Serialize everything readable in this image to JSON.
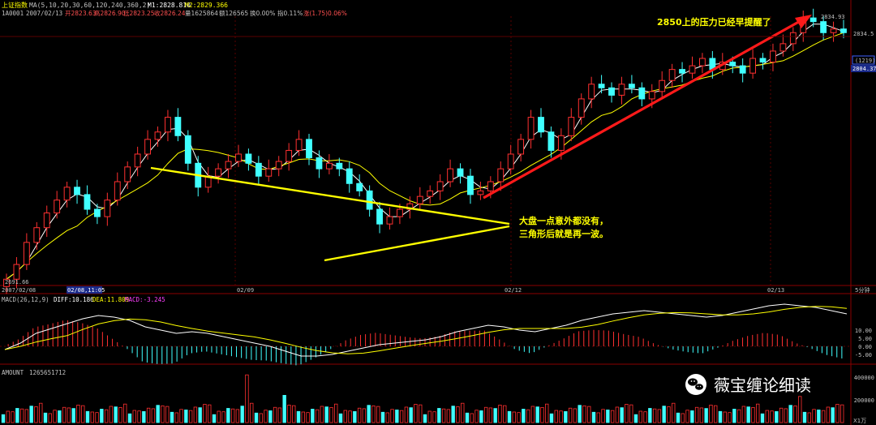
{
  "header": {
    "title": "上证指数",
    "ma_params": "MA(5,10,20,30,60,120,240,360,2)",
    "m1": "M1:2828.810",
    "m2": "M2:2829.366",
    "code": "1A0001",
    "date": "2007/02/13",
    "open": "开2823.63",
    "high": "高2826.90",
    "low": "低2823.25",
    "close": "收2826.24",
    "volume": "量1625864",
    "amount": "额126565",
    "turnover": "换0.00%",
    "index_pct": "指0.11%",
    "change": "涨(1.75)0.06%"
  },
  "annotations": {
    "top": "2850上的压力已经早提醒了",
    "mid_line1": "大盘一点意外都没有，",
    "mid_line2": "三角形后就是再一波。"
  },
  "price_labels": {
    "low_marker": "2691.66",
    "high_marker": "2834.93",
    "axis_top": "2834.5",
    "axis_box": "(1219)",
    "axis_cur": "2804.37"
  },
  "x_axis": {
    "labels": [
      "2007/02/08",
      "02/08,11:05",
      "02/09",
      "02/12",
      "02/13"
    ],
    "period": "5分钟"
  },
  "macd_header": {
    "name": "MACD(26,12,9)",
    "diff": "DIFF:10.186",
    "dea": "DEA:11.809",
    "macd": "MACD:-3.245"
  },
  "amount_header": {
    "name": "AMOUNT",
    "value": "1265651712"
  },
  "watermark": "薇宝缠论细读",
  "chart_data": {
    "type": "candlestick",
    "title": "上证指数",
    "interval": "5分钟",
    "price_range": [
      2691.66,
      2834.93
    ],
    "close_approx": [
      2692,
      2700,
      2712,
      2720,
      2728,
      2735,
      2742,
      2738,
      2730,
      2726,
      2735,
      2745,
      2753,
      2760,
      2768,
      2772,
      2780,
      2770,
      2755,
      2742,
      2748,
      2752,
      2756,
      2760,
      2755,
      2748,
      2752,
      2756,
      2762,
      2768,
      2758,
      2752,
      2755,
      2752,
      2744,
      2740,
      2730,
      2722,
      2726,
      2730,
      2733,
      2737,
      2740,
      2745,
      2752,
      2748,
      2738,
      2740,
      2745,
      2752,
      2760,
      2768,
      2780,
      2772,
      2762,
      2770,
      2780,
      2790,
      2798,
      2796,
      2792,
      2798,
      2796,
      2790,
      2794,
      2800,
      2806,
      2804,
      2808,
      2812,
      2806,
      2810,
      2808,
      2804,
      2812,
      2810,
      2816,
      2820,
      2826,
      2834,
      2832,
      2826,
      2828,
      2826
    ],
    "macd_dif_approx": [
      -2,
      2,
      8,
      11,
      14,
      17,
      19,
      18,
      16,
      12,
      10,
      8,
      9,
      8,
      6,
      4,
      2,
      0,
      -3,
      -6,
      -6,
      -5,
      -3,
      -1,
      1,
      2,
      3,
      4,
      6,
      9,
      11,
      13,
      12,
      10,
      9,
      11,
      13,
      16,
      18,
      20,
      21,
      22,
      21,
      20,
      19,
      18,
      19,
      21,
      23,
      25,
      26,
      25,
      24,
      22,
      20
    ],
    "macd_axis_ticks": [
      10,
      5,
      0,
      -5
    ],
    "amount_axis_ticks": [
      400000,
      200000
    ],
    "amount_unit": "X1万"
  }
}
